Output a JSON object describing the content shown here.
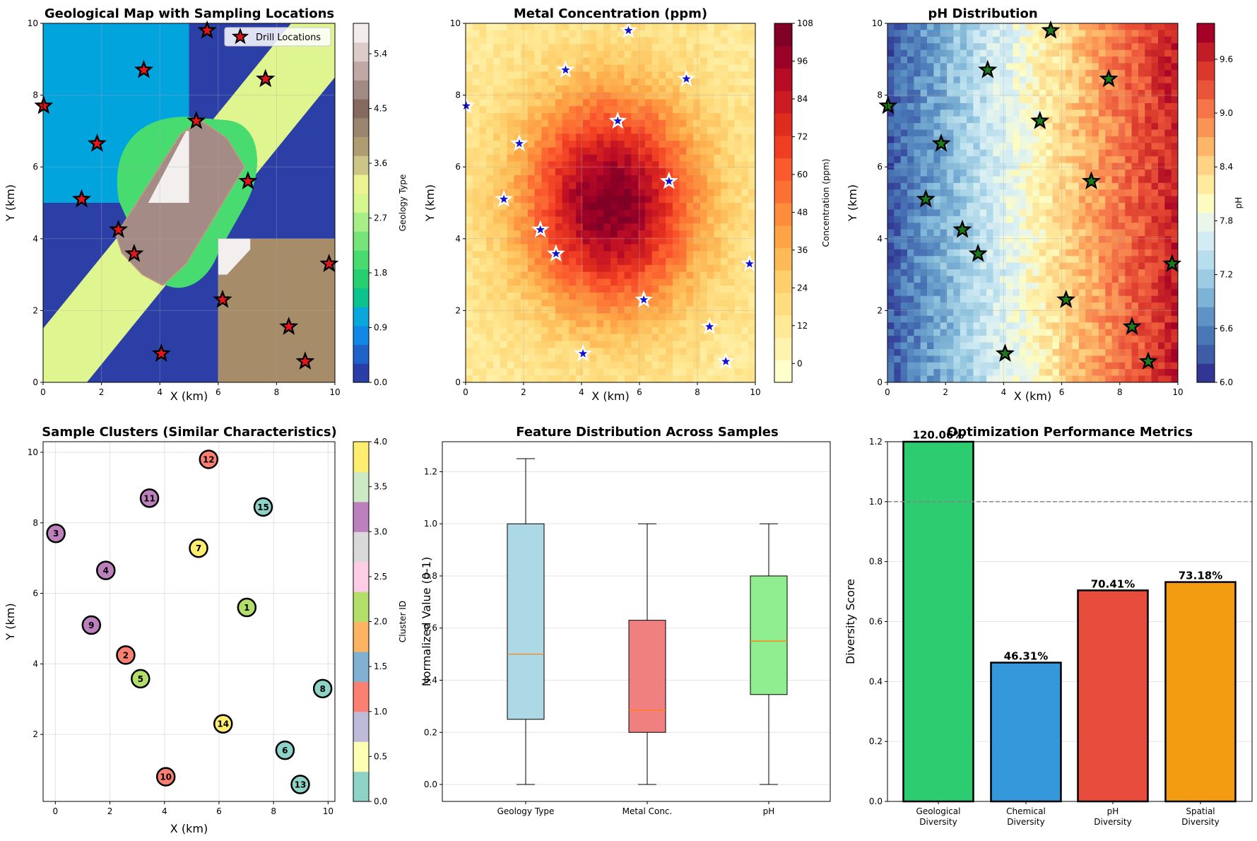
{
  "chart_data": [
    {
      "id": "geo",
      "type": "heatmap",
      "title": "Geological Map with Sampling Locations",
      "xlabel": "X (km)",
      "ylabel": "Y (km)",
      "xlim": [
        0,
        10
      ],
      "ylim": [
        0,
        10
      ],
      "xticks": [
        "0",
        "2",
        "4",
        "6",
        "8",
        "10"
      ],
      "yticks": [
        "0",
        "2",
        "4",
        "6",
        "8",
        "10"
      ],
      "legend": {
        "label": "Drill Locations",
        "placement": "top-right"
      },
      "colorbar": {
        "label": "Geology Type",
        "range": [
          0,
          5.9
        ],
        "ticks": [
          "0.0",
          "0.9",
          "1.8",
          "2.7",
          "3.6",
          "4.5",
          "5.4"
        ],
        "tick_values": [
          0,
          0.9,
          1.8,
          2.7,
          3.6,
          4.5,
          5.4
        ],
        "colors": [
          "#2b3da6",
          "#1f62c9",
          "#1187e6",
          "#08a7dc",
          "#0ac38e",
          "#26d070",
          "#47db70",
          "#77e47a",
          "#a8ee86",
          "#d6f68e",
          "#ecf391",
          "#cdc586",
          "#b09c72",
          "#9a856f",
          "#876a5f",
          "#a38b85",
          "#c0a9a5",
          "#dccbc8",
          "#f2ecec"
        ]
      },
      "regions": [
        {
          "geology": "sandstone-blue",
          "value": 1.0,
          "color": "#02a4de"
        },
        {
          "geology": "basement-navy",
          "value": 0.0,
          "color": "#2b3fa7"
        },
        {
          "geology": "diagonal-dike",
          "value": 2.8,
          "color": "#dff58f"
        },
        {
          "geology": "green-halo",
          "value": 2.2,
          "color": "#47db70"
        },
        {
          "geology": "brown-block",
          "value": 4.0,
          "color": "#a68c68"
        },
        {
          "geology": "mauve-intrusion",
          "value": 4.8,
          "color": "#a58b86"
        },
        {
          "geology": "white-core",
          "value": 5.8,
          "color": "#f3efee"
        }
      ],
      "marker_color": "#e8141a"
    },
    {
      "id": "metal",
      "type": "heatmap",
      "title": "Metal Concentration (ppm)",
      "xlabel": "X (km)",
      "ylabel": "Y (km)",
      "xlim": [
        0,
        10
      ],
      "ylim": [
        0,
        10
      ],
      "xticks": [
        "0",
        "2",
        "4",
        "6",
        "8",
        "10"
      ],
      "yticks": [
        "0",
        "2",
        "4",
        "6",
        "8",
        "10"
      ],
      "peak": {
        "x": 5,
        "y": 5,
        "value": 100
      },
      "colorbar": {
        "label": "Concentration (ppm)",
        "range": [
          -6,
          108
        ],
        "ticks": [
          "0",
          "12",
          "24",
          "36",
          "48",
          "60",
          "72",
          "84",
          "96",
          "108"
        ],
        "tick_values": [
          0,
          12,
          24,
          36,
          48,
          60,
          72,
          84,
          96,
          108
        ],
        "colors": [
          "#ffffcc",
          "#fff3b0",
          "#ffe996",
          "#fedd80",
          "#fecf6c",
          "#feba56",
          "#fea446",
          "#fd8d3c",
          "#fc7034",
          "#fa5a2e",
          "#f03e24",
          "#e02b1f",
          "#cc1b22",
          "#b70b26",
          "#9b0126",
          "#800026"
        ]
      },
      "marker_color": "#1414cc"
    },
    {
      "id": "ph",
      "type": "heatmap",
      "title": "pH Distribution",
      "xlabel": "X (km)",
      "ylabel": "Y (km)",
      "xlim": [
        0,
        10
      ],
      "ylim": [
        0,
        10
      ],
      "xticks": [
        "0",
        "2",
        "4",
        "6",
        "8",
        "10"
      ],
      "yticks": [
        "0",
        "2",
        "4",
        "6",
        "8",
        "10"
      ],
      "gradient": {
        "left_ph": 6.2,
        "right_ph": 9.8
      },
      "colorbar": {
        "label": "pH",
        "range": [
          6.0,
          10.0
        ],
        "ticks": [
          "6.0",
          "6.6",
          "7.2",
          "7.8",
          "8.4",
          "9.0",
          "9.6"
        ],
        "tick_values": [
          6.0,
          6.6,
          7.2,
          7.8,
          8.4,
          9.0,
          9.6
        ],
        "colors": [
          "#313695",
          "#3f5ca7",
          "#4a78b6",
          "#5f93c5",
          "#7db3d6",
          "#9ccbe3",
          "#b8ddec",
          "#d3ecf4",
          "#e9f6e9",
          "#fdfcc0",
          "#fee99d",
          "#fed385",
          "#fdb567",
          "#fa9455",
          "#f57548",
          "#ea5439",
          "#d9382b",
          "#c21d27",
          "#a50026"
        ]
      },
      "marker_color": "#1c7a1c"
    },
    {
      "id": "clusters",
      "type": "scatter",
      "title": "Sample Clusters (Similar Characteristics)",
      "xlabel": "X (km)",
      "ylabel": "Y (km)",
      "xlim": [
        -0.45,
        10.25
      ],
      "ylim": [
        0.1,
        10.3
      ],
      "xticks": [
        "0",
        "2",
        "4",
        "6",
        "8",
        "10"
      ],
      "yticks": [
        "2",
        "4",
        "6",
        "8",
        "10"
      ],
      "colorbar": {
        "label": "Cluster ID",
        "range": [
          0,
          4
        ],
        "ticks": [
          "0.0",
          "0.5",
          "1.0",
          "1.5",
          "2.0",
          "2.5",
          "3.0",
          "3.5",
          "4.0"
        ],
        "tick_values": [
          0,
          0.5,
          1,
          1.5,
          2,
          2.5,
          3,
          3.5,
          4
        ],
        "colors": [
          "#8dd3c7",
          "#ffffb3",
          "#bebada",
          "#fb8072",
          "#80b1d3",
          "#fdb462",
          "#b3de69",
          "#fccde5",
          "#d9d9d9",
          "#bc80bd",
          "#ccebc5",
          "#ffed6f"
        ]
      },
      "cluster_colors": [
        "#8dd3c7",
        "#fb8072",
        "#b3de69",
        "#bc80bd",
        "#ffed6f"
      ]
    },
    {
      "id": "box",
      "type": "box",
      "title": "Feature Distribution Across Samples",
      "ylabel": "Normalized Value (0-1)",
      "ylim": [
        -0.065,
        1.315
      ],
      "yticks": [
        "0.0",
        "0.2",
        "0.4",
        "0.6",
        "0.8",
        "1.0",
        "1.2"
      ],
      "categories": [
        "Geology Type",
        "Metal Conc.",
        "pH"
      ],
      "boxes": [
        {
          "name": "Geology Type",
          "whislo": 0.0,
          "q1": 0.25,
          "median": 0.5,
          "q3": 1.0,
          "whishi": 1.25,
          "color": "#add8e6"
        },
        {
          "name": "Metal Conc.",
          "whislo": 0.0,
          "q1": 0.2,
          "median": 0.285,
          "q3": 0.63,
          "whishi": 1.0,
          "color": "#f08080"
        },
        {
          "name": "pH",
          "whislo": 0.0,
          "q1": 0.345,
          "median": 0.55,
          "q3": 0.8,
          "whishi": 1.0,
          "color": "#90ee90"
        }
      ]
    },
    {
      "id": "perf",
      "type": "bar",
      "title": "Optimization Performance Metrics",
      "ylabel": "Diversity Score",
      "ylim": [
        0,
        1.2
      ],
      "yticks": [
        "0.0",
        "0.2",
        "0.4",
        "0.6",
        "0.8",
        "1.0",
        "1.2"
      ],
      "reference_line": 1.0,
      "categories": [
        [
          "Geological",
          "Diversity"
        ],
        [
          "Chemical",
          "Diversity"
        ],
        [
          "pH",
          "Diversity"
        ],
        [
          "Spatial",
          "Diversity"
        ]
      ],
      "values": [
        1.2006,
        0.4631,
        0.7041,
        0.7318
      ],
      "labels": [
        "120.06%",
        "46.31%",
        "70.41%",
        "73.18%"
      ],
      "colors": [
        "#2ecc71",
        "#3498db",
        "#e74c3c",
        "#f39c12"
      ]
    }
  ],
  "samples": [
    {
      "id": "1",
      "x": 7.02,
      "y": 5.6,
      "cluster": 2
    },
    {
      "id": "2",
      "x": 2.58,
      "y": 4.25,
      "cluster": 1
    },
    {
      "id": "3",
      "x": 0.02,
      "y": 7.7,
      "cluster": 3
    },
    {
      "id": "4",
      "x": 1.85,
      "y": 6.65,
      "cluster": 3
    },
    {
      "id": "5",
      "x": 3.12,
      "y": 3.58,
      "cluster": 2
    },
    {
      "id": "6",
      "x": 8.42,
      "y": 1.55,
      "cluster": 0
    },
    {
      "id": "7",
      "x": 5.25,
      "y": 7.28,
      "cluster": 4
    },
    {
      "id": "8",
      "x": 9.8,
      "y": 3.3,
      "cluster": 0
    },
    {
      "id": "9",
      "x": 1.32,
      "y": 5.1,
      "cluster": 3
    },
    {
      "id": "10",
      "x": 4.05,
      "y": 0.8,
      "cluster": 1
    },
    {
      "id": "11",
      "x": 3.45,
      "y": 8.7,
      "cluster": 3
    },
    {
      "id": "12",
      "x": 5.62,
      "y": 9.8,
      "cluster": 1
    },
    {
      "id": "13",
      "x": 8.98,
      "y": 0.58,
      "cluster": 0
    },
    {
      "id": "14",
      "x": 6.15,
      "y": 2.3,
      "cluster": 4
    },
    {
      "id": "15",
      "x": 7.62,
      "y": 8.45,
      "cluster": 0
    }
  ]
}
